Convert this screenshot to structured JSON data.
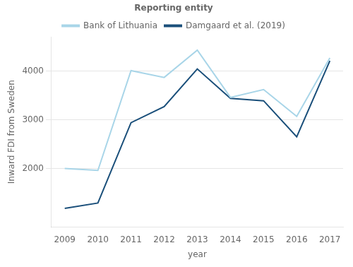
{
  "chart_data": {
    "type": "line",
    "x_label": "year",
    "y_label": "Inward FDI from Sweden",
    "x": [
      2009,
      2010,
      2011,
      2012,
      2013,
      2014,
      2015,
      2016,
      2017
    ],
    "series": [
      {
        "name": "Bank of Lithuania",
        "color": "#a8d5e8",
        "values": [
          2000,
          1960,
          4010,
          3870,
          4430,
          3460,
          3620,
          3070,
          4270
        ]
      },
      {
        "name": "Damgaard et al. (2019)",
        "color": "#1a4f7a",
        "values": [
          1180,
          1290,
          2940,
          3270,
          4045,
          3440,
          3390,
          2650,
          4210
        ]
      }
    ],
    "legend_title": "Reporting entity",
    "legend": "top",
    "xlim": [
      2008.6,
      2017.4
    ],
    "xticks": [
      2009,
      2010,
      2011,
      2012,
      2013,
      2014,
      2015,
      2016,
      2017
    ],
    "ylim": [
      800,
      4700
    ],
    "yticks": [
      2000,
      3000,
      4000
    ],
    "grid": true
  }
}
